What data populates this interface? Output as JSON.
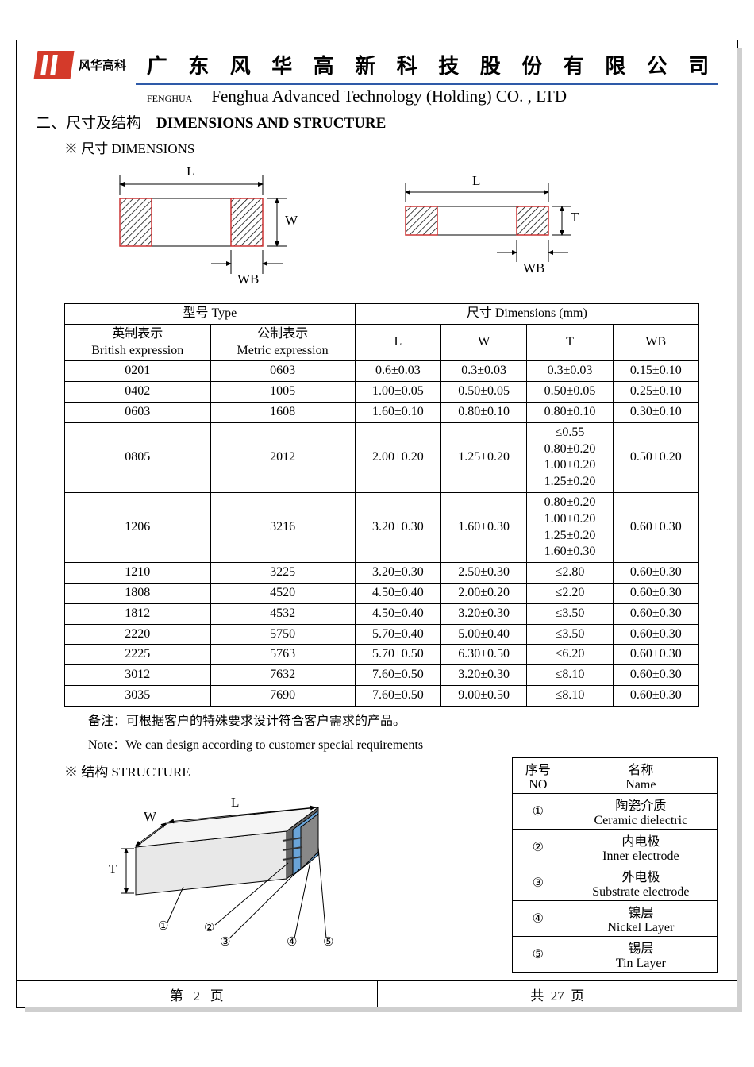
{
  "header": {
    "logo_text_cn": "风华高科",
    "company_cn": "广 东 风 华 高 新 科 技 股 份 有 限 公 司",
    "fenghua_en_small": "FENGHUA",
    "company_en": "Fenghua Advanced Technology (Holding) CO. , LTD",
    "blue_rule_color": "#2e5aa8",
    "logo_bg_color": "#d43a2a"
  },
  "section": {
    "title_cn": "二、尺寸及结构",
    "title_en": "DIMENSIONS AND STRUCTURE",
    "dims_sub": "※ 尺寸 DIMENSIONS",
    "struct_sub": "※ 结构 STRUCTURE"
  },
  "diagram_labels": {
    "L": "L",
    "W": "W",
    "T": "T",
    "WB": "WB"
  },
  "dims_table": {
    "header_type": "型号 Type",
    "header_dims": "尺寸     Dimensions     (mm)",
    "col_british_cn": "英制表示",
    "col_british_en": "British expression",
    "col_metric_cn": "公制表示",
    "col_metric_en": "Metric expression",
    "col_L": "L",
    "col_W": "W",
    "col_T": "T",
    "col_WB": "WB",
    "rows": [
      {
        "b": "0201",
        "m": "0603",
        "L": "0.6±0.03",
        "W": "0.3±0.03",
        "T": "0.3±0.03",
        "WB": "0.15±0.10"
      },
      {
        "b": "0402",
        "m": "1005",
        "L": "1.00±0.05",
        "W": "0.50±0.05",
        "T": "0.50±0.05",
        "WB": "0.25±0.10"
      },
      {
        "b": "0603",
        "m": "1608",
        "L": "1.60±0.10",
        "W": "0.80±0.10",
        "T": "0.80±0.10",
        "WB": "0.30±0.10"
      },
      {
        "b": "0805",
        "m": "2012",
        "L": "2.00±0.20",
        "W": "1.25±0.20",
        "T": "≤0.55\n0.80±0.20\n1.00±0.20\n1.25±0.20",
        "WB": "0.50±0.20"
      },
      {
        "b": "1206",
        "m": "3216",
        "L": "3.20±0.30",
        "W": "1.60±0.30",
        "T": "0.80±0.20\n1.00±0.20\n1.25±0.20\n1.60±0.30",
        "WB": "0.60±0.30"
      },
      {
        "b": "1210",
        "m": "3225",
        "L": "3.20±0.30",
        "W": "2.50±0.30",
        "T": "≤2.80",
        "WB": "0.60±0.30"
      },
      {
        "b": "1808",
        "m": "4520",
        "L": "4.50±0.40",
        "W": "2.00±0.20",
        "T": "≤2.20",
        "WB": "0.60±0.30"
      },
      {
        "b": "1812",
        "m": "4532",
        "L": "4.50±0.40",
        "W": "3.20±0.30",
        "T": "≤3.50",
        "WB": "0.60±0.30"
      },
      {
        "b": "2220",
        "m": "5750",
        "L": "5.70±0.40",
        "W": "5.00±0.40",
        "T": "≤3.50",
        "WB": "0.60±0.30"
      },
      {
        "b": "2225",
        "m": "5763",
        "L": "5.70±0.50",
        "W": "6.30±0.50",
        "T": "≤6.20",
        "WB": "0.60±0.30"
      },
      {
        "b": "3012",
        "m": "7632",
        "L": "7.60±0.50",
        "W": "3.20±0.30",
        "T": "≤8.10",
        "WB": "0.60±0.30"
      },
      {
        "b": "3035",
        "m": "7690",
        "L": "7.60±0.50",
        "W": "9.00±0.50",
        "T": "≤8.10",
        "WB": "0.60±0.30"
      }
    ]
  },
  "notes": {
    "cn": "备注：可根据客户的特殊要求设计符合客户需求的产品。",
    "en": "Note：We can design according to customer special requirements"
  },
  "struct_table": {
    "col_no_cn": "序号",
    "col_no_en": "NO",
    "col_name_cn": "名称",
    "col_name_en": "Name",
    "rows": [
      {
        "no": "①",
        "cn": "陶瓷介质",
        "en": "Ceramic   dielectric"
      },
      {
        "no": "②",
        "cn": "内电极",
        "en": "Inner   electrode"
      },
      {
        "no": "③",
        "cn": "外电极",
        "en": "Substrate   electrode"
      },
      {
        "no": "④",
        "cn": "镍层",
        "en": "Nickel Layer"
      },
      {
        "no": "⑤",
        "cn": "锡层",
        "en": "Tin Layer"
      }
    ]
  },
  "struct_diagram": {
    "labels": {
      "W": "W",
      "L": "L",
      "T": "T",
      "n1": "①",
      "n2": "②",
      "n3": "③",
      "n4": "④",
      "n5": "⑤"
    },
    "colors": {
      "body": "#e8e8e8",
      "body_dark": "#a8a8a8",
      "electrode": "#666666",
      "cap_blue": "#6aa4d8",
      "inner": "#444444",
      "outline": "#000000"
    }
  },
  "footer": {
    "page_label_pre": "第",
    "page_num": "2",
    "page_label_post": "页",
    "total_pre": "共",
    "total_num": "27",
    "total_post": "页"
  },
  "style": {
    "text_color": "#000000",
    "background": "#ffffff",
    "border_color": "#000000",
    "hatch_color": "#000000",
    "hatch_box_stroke": "#cc3333"
  }
}
